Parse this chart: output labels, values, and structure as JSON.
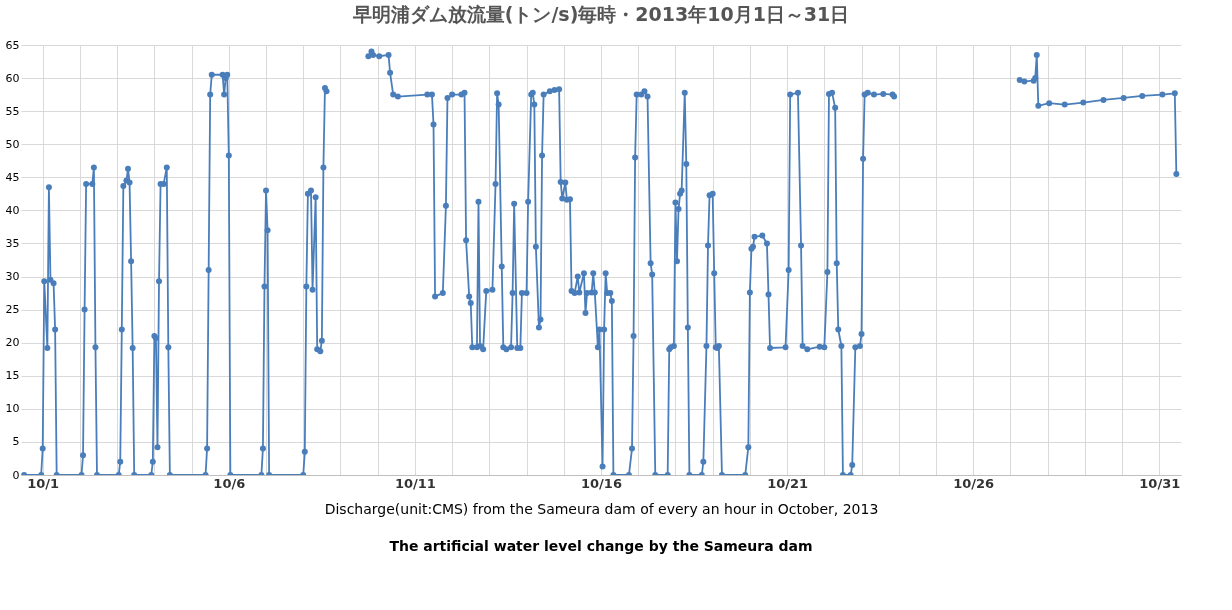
{
  "chart_data": {
    "type": "line",
    "title": "早明浦ダム放流量(トン/s)毎時・2013年10月1日～31日",
    "xlabel": "Discharge(unit:CMS) from the Sameura dam of every an hour in October, 2013",
    "annotations": [
      "The artificial water level change by the Sameura dam"
    ],
    "xlim": [
      "2013-09-30T22:00",
      "2013-11-01T02:00"
    ],
    "xticks": [
      {
        "value": "2013-10-01T12:00",
        "label": "10/1"
      },
      {
        "value": "2013-10-02T12:00",
        "label": null
      },
      {
        "value": "2013-10-03T12:00",
        "label": null
      },
      {
        "value": "2013-10-04T12:00",
        "label": null
      },
      {
        "value": "2013-10-05T12:00",
        "label": null
      },
      {
        "value": "2013-10-06T12:00",
        "label": "10/6"
      },
      {
        "value": "2013-10-07T12:00",
        "label": null
      },
      {
        "value": "2013-10-08T12:00",
        "label": null
      },
      {
        "value": "2013-10-09T12:00",
        "label": null
      },
      {
        "value": "2013-10-10T12:00",
        "label": null
      },
      {
        "value": "2013-10-11T12:00",
        "label": "10/11"
      },
      {
        "value": "2013-10-12T12:00",
        "label": null
      },
      {
        "value": "2013-10-13T12:00",
        "label": null
      },
      {
        "value": "2013-10-14T12:00",
        "label": null
      },
      {
        "value": "2013-10-15T12:00",
        "label": null
      },
      {
        "value": "2013-10-16T12:00",
        "label": "10/16"
      },
      {
        "value": "2013-10-17T12:00",
        "label": null
      },
      {
        "value": "2013-10-18T12:00",
        "label": null
      },
      {
        "value": "2013-10-19T12:00",
        "label": null
      },
      {
        "value": "2013-10-20T12:00",
        "label": null
      },
      {
        "value": "2013-10-21T12:00",
        "label": "10/21"
      },
      {
        "value": "2013-10-22T12:00",
        "label": null
      },
      {
        "value": "2013-10-23T12:00",
        "label": null
      },
      {
        "value": "2013-10-24T12:00",
        "label": null
      },
      {
        "value": "2013-10-25T12:00",
        "label": null
      },
      {
        "value": "2013-10-26T12:00",
        "label": "10/26"
      },
      {
        "value": "2013-10-27T12:00",
        "label": null
      },
      {
        "value": "2013-10-28T12:00",
        "label": null
      },
      {
        "value": "2013-10-29T12:00",
        "label": null
      },
      {
        "value": "2013-10-30T12:00",
        "label": null
      },
      {
        "value": "2013-10-31T12:00",
        "label": "10/31"
      }
    ],
    "ylim": [
      0,
      65
    ],
    "yticks": [
      0,
      5,
      10,
      15,
      20,
      25,
      30,
      35,
      40,
      45,
      50,
      55,
      60,
      65
    ],
    "grid": true,
    "marker": "circle",
    "line_style": "solid",
    "x": [
      "2013-10-01T00:00",
      "2013-10-01T11:00",
      "2013-10-01T12:00",
      "2013-10-01T13:00",
      "2013-10-01T15:00",
      "2013-10-01T16:00",
      "2013-10-01T17:00",
      "2013-10-01T19:00",
      "2013-10-01T20:00",
      "2013-10-01T21:00",
      "2013-10-02T13:00",
      "2013-10-02T14:00",
      "2013-10-02T15:00",
      "2013-10-02T16:00",
      "2013-10-02T20:00",
      "2013-10-02T21:00",
      "2013-10-02T22:00",
      "2013-10-02T23:00",
      "2013-10-03T13:00",
      "2013-10-03T14:00",
      "2013-10-03T15:00",
      "2013-10-03T16:00",
      "2013-10-03T18:00",
      "2013-10-03T19:00",
      "2013-10-03T20:00",
      "2013-10-03T21:00",
      "2013-10-03T22:00",
      "2013-10-03T23:00",
      "2013-10-04T10:00",
      "2013-10-04T11:00",
      "2013-10-04T12:00",
      "2013-10-04T13:00",
      "2013-10-04T14:00",
      "2013-10-04T15:00",
      "2013-10-04T16:00",
      "2013-10-04T18:00",
      "2013-10-04T20:00",
      "2013-10-04T21:00",
      "2013-10-04T22:00",
      "2013-10-05T21:00",
      "2013-10-05T22:00",
      "2013-10-05T23:00",
      "2013-10-06T00:00",
      "2013-10-06T01:00",
      "2013-10-06T08:00",
      "2013-10-06T09:00",
      "2013-10-06T10:00",
      "2013-10-06T11:00",
      "2013-10-06T12:00",
      "2013-10-06T13:00",
      "2013-10-07T09:00",
      "2013-10-07T10:00",
      "2013-10-07T11:00",
      "2013-10-07T12:00",
      "2013-10-07T13:00",
      "2013-10-07T14:00",
      "2013-10-08T12:00",
      "2013-10-08T13:00",
      "2013-10-08T14:00",
      "2013-10-08T15:00",
      "2013-10-08T17:00",
      "2013-10-08T18:00",
      "2013-10-08T20:00",
      "2013-10-08T21:00",
      "2013-10-08T23:00",
      "2013-10-09T00:00",
      "2013-10-09T01:00",
      "2013-10-09T02:00",
      "2013-10-09T03:00",
      "2013-10-09T04:00",
      "2013-10-10T06:00",
      "2013-10-10T08:00",
      "2013-10-10T09:00",
      "2013-10-10T13:00",
      "2013-10-10T19:00",
      "2013-10-10T20:00",
      "2013-10-10T22:00",
      "2013-10-11T01:00",
      "2013-10-11T20:00",
      "2013-10-11T23:00",
      "2013-10-12T00:00",
      "2013-10-12T01:00",
      "2013-10-12T06:00",
      "2013-10-12T08:00",
      "2013-10-12T09:00",
      "2013-10-12T12:00",
      "2013-10-12T18:00",
      "2013-10-12T20:00",
      "2013-10-12T21:00",
      "2013-10-12T23:00",
      "2013-10-13T00:00",
      "2013-10-13T01:00",
      "2013-10-13T04:00",
      "2013-10-13T05:00",
      "2013-10-13T06:00",
      "2013-10-13T08:00",
      "2013-10-13T10:00",
      "2013-10-13T14:00",
      "2013-10-13T16:00",
      "2013-10-13T17:00",
      "2013-10-13T18:00",
      "2013-10-13T20:00",
      "2013-10-13T21:00",
      "2013-10-13T23:00",
      "2013-10-14T02:00",
      "2013-10-14T03:00",
      "2013-10-14T04:00",
      "2013-10-14T06:00",
      "2013-10-14T08:00",
      "2013-10-14T09:00",
      "2013-10-14T12:00",
      "2013-10-14T13:00",
      "2013-10-14T15:00",
      "2013-10-14T16:00",
      "2013-10-14T17:00",
      "2013-10-14T18:00",
      "2013-10-14T20:00",
      "2013-10-14T21:00",
      "2013-10-14T22:00",
      "2013-10-14T23:00",
      "2013-10-15T03:00",
      "2013-10-15T06:00",
      "2013-10-15T09:00",
      "2013-10-15T10:00",
      "2013-10-15T11:00",
      "2013-10-15T13:00",
      "2013-10-15T14:00",
      "2013-10-15T16:00",
      "2013-10-15T17:00",
      "2013-10-15T19:00",
      "2013-10-15T21:00",
      "2013-10-15T22:00",
      "2013-10-16T01:00",
      "2013-10-16T02:00",
      "2013-10-16T03:00",
      "2013-10-16T06:00",
      "2013-10-16T07:00",
      "2013-10-16T08:00",
      "2013-10-16T10:00",
      "2013-10-16T11:00",
      "2013-10-16T13:00",
      "2013-10-16T14:00",
      "2013-10-16T15:00",
      "2013-10-16T16:00",
      "2013-10-16T18:00",
      "2013-10-16T19:00",
      "2013-10-16T20:00",
      "2013-10-17T06:00",
      "2013-10-17T08:00",
      "2013-10-17T09:00",
      "2013-10-17T10:00",
      "2013-10-17T11:00",
      "2013-10-17T14:00",
      "2013-10-17T16:00",
      "2013-10-17T18:00",
      "2013-10-17T20:00",
      "2013-10-17T21:00",
      "2013-10-17T23:00",
      "2013-10-18T07:00",
      "2013-10-18T08:00",
      "2013-10-18T09:00",
      "2013-10-18T11:00",
      "2013-10-18T12:00",
      "2013-10-18T13:00",
      "2013-10-18T14:00",
      "2013-10-18T15:00",
      "2013-10-18T16:00",
      "2013-10-18T18:00",
      "2013-10-18T19:00",
      "2013-10-18T20:00",
      "2013-10-18T21:00",
      "2013-10-19T05:00",
      "2013-10-19T06:00",
      "2013-10-19T08:00",
      "2013-10-19T09:00",
      "2013-10-19T10:00",
      "2013-10-19T12:00",
      "2013-10-19T13:00",
      "2013-10-19T14:00",
      "2013-10-19T15:00",
      "2013-10-19T16:00",
      "2013-10-19T18:00",
      "2013-10-20T09:00",
      "2013-10-20T11:00",
      "2013-10-20T12:00",
      "2013-10-20T13:00",
      "2013-10-20T14:00",
      "2013-10-20T15:00",
      "2013-10-20T20:00",
      "2013-10-20T23:00",
      "2013-10-21T00:00",
      "2013-10-21T01:00",
      "2013-10-21T11:00",
      "2013-10-21T13:00",
      "2013-10-21T14:00",
      "2013-10-21T19:00",
      "2013-10-21T21:00",
      "2013-10-21T22:00",
      "2013-10-22T01:00",
      "2013-10-22T09:00",
      "2013-10-22T12:00",
      "2013-10-22T14:00",
      "2013-10-22T15:00",
      "2013-10-22T17:00",
      "2013-10-22T19:00",
      "2013-10-22T20:00",
      "2013-10-22T21:00",
      "2013-10-22T23:00",
      "2013-10-23T00:00",
      "2013-10-23T05:00",
      "2013-10-23T06:00",
      "2013-10-23T08:00",
      "2013-10-23T11:00",
      "2013-10-23T12:00",
      "2013-10-23T13:00",
      "2013-10-23T14:00",
      "2013-10-23T16:00",
      "2013-10-23T20:00",
      "2013-10-24T02:00",
      "2013-10-24T08:00",
      "2013-10-24T09:00",
      "2013-10-24T11:00",
      "2013-10-27T18:00",
      "2013-10-27T21:00",
      "2013-10-28T03:00",
      "2013-10-28T04:00",
      "2013-10-28T05:00",
      "2013-10-28T06:00",
      "2013-10-28T13:00",
      "2013-10-28T23:00",
      "2013-10-29T11:00",
      "2013-10-30T00:00",
      "2013-10-30T13:00",
      "2013-10-31T01:00",
      "2013-10-31T14:00",
      "2013-10-31T22:00",
      "2013-10-31T23:00"
    ],
    "series": [
      {
        "color": "#4a7ebb",
        "values": [
          0,
          0,
          4,
          29.3,
          19.2,
          43.5,
          29.5,
          29,
          22,
          0,
          0,
          3,
          25,
          44,
          44,
          46.5,
          19.3,
          0,
          0,
          2,
          22,
          43.7,
          44.5,
          46.3,
          44.2,
          32.3,
          19.2,
          0,
          0,
          2,
          21,
          20.7,
          4.2,
          29.3,
          44,
          44,
          46.5,
          19.3,
          0,
          0,
          4,
          31,
          57.5,
          60.5,
          60.5,
          57.5,
          60,
          60.5,
          48.3,
          0,
          0,
          4,
          28.5,
          43,
          37,
          0,
          0,
          3.5,
          28.5,
          42.5,
          43,
          28,
          42,
          19,
          18.7,
          20.3,
          46.5,
          58.5,
          58,
          null,
          63.3,
          64,
          63.5,
          63.3,
          63.5,
          60.8,
          57.5,
          57.2,
          57.5,
          57.5,
          53,
          27,
          27.5,
          40.7,
          57,
          57.5,
          57.5,
          57.8,
          35.5,
          27,
          26,
          19.3,
          19.3,
          41.3,
          19.5,
          19,
          27.8,
          28,
          44,
          57.7,
          56,
          31.5,
          19.3,
          19,
          19.3,
          27.5,
          41,
          19.2,
          19.2,
          27.5,
          27.5,
          41.3,
          57.5,
          57.8,
          56,
          34.5,
          22.3,
          23.5,
          48.3,
          57.5,
          58,
          58.2,
          58.3,
          44.3,
          41.8,
          44.2,
          41.6,
          41.7,
          27.8,
          27.5,
          30,
          27.6,
          30.5,
          24.5,
          27.5,
          27.6,
          30.5,
          27.6,
          19.3,
          22,
          1.3,
          22,
          30.5,
          27.5,
          27.5,
          26.3,
          0,
          0,
          4,
          21,
          48,
          57.5,
          57.5,
          58,
          57.2,
          32,
          30.3,
          0,
          0,
          19,
          19.3,
          19.5,
          41.2,
          32.3,
          40.2,
          42.5,
          43,
          57.8,
          47,
          22.3,
          0,
          0,
          2,
          19.5,
          34.7,
          42.3,
          42.5,
          30.5,
          19.3,
          19.2,
          19.5,
          0,
          0,
          4.2,
          27.6,
          34.2,
          34.5,
          36,
          36.2,
          35,
          27.3,
          19.2,
          19.3,
          31,
          57.5,
          57.8,
          34.7,
          19.5,
          19,
          19.4,
          19.3,
          30.7,
          57.6,
          57.8,
          55.5,
          32,
          22,
          19.5,
          0,
          0,
          1.5,
          19.3,
          19.5,
          21.3,
          47.8,
          57.5,
          57.8,
          57.5,
          57.6,
          57.5,
          57.2,
          null,
          59.7,
          59.5,
          59.6,
          60,
          63.5,
          55.8,
          56.2,
          56,
          56.3,
          56.7,
          57,
          57.3,
          57.5,
          57.7,
          45.5
        ]
      }
    ]
  }
}
